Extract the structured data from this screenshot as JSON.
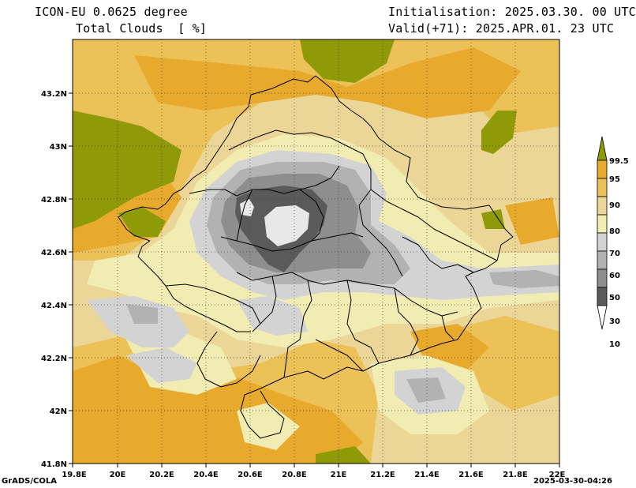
{
  "header": {
    "model": "ICON-EU 0.0625 degree",
    "field": "Total Clouds  [ %]",
    "init": "Initialisation: 2025.03.30. 00 UTC",
    "valid": "Valid(+71): 2025.APR.01. 23 UTC"
  },
  "footer": {
    "credit": "GrADS/COLA",
    "stamp": "2025-03-30-04:26"
  },
  "axes": {
    "x_ticks": [
      "19.8E",
      "20E",
      "20.2E",
      "20.4E",
      "20.6E",
      "20.8E",
      "21E",
      "21.2E",
      "21.4E",
      "21.6E",
      "21.8E",
      "22E"
    ],
    "y_ticks": [
      "43.2N",
      "43N",
      "42.8N",
      "42.6N",
      "42.4N",
      "42.2N",
      "42N",
      "41.8N"
    ]
  },
  "legend": {
    "labels": [
      "99.5",
      "95",
      "90",
      "80",
      "70",
      "60",
      "50",
      "30",
      "10"
    ],
    "colors": [
      "#8f9a08",
      "#e8aa2d",
      "#ecc158",
      "#ecd697",
      "#f1ecb2",
      "#d3d3d3",
      "#b2b2b2",
      "#8e8e8e",
      "#5a5a5a",
      "#ffffff"
    ]
  },
  "map_colors": {
    "c99": "#8f9a08",
    "c95": "#e8aa2d",
    "c90": "#ecc158",
    "c80": "#ecd697",
    "c70": "#f1ecb2",
    "c60": "#d3d3d3",
    "c50": "#b2b2b2",
    "c30": "#8e8e8e",
    "c10": "#5a5a5a",
    "c0": "#e8e8e8"
  }
}
